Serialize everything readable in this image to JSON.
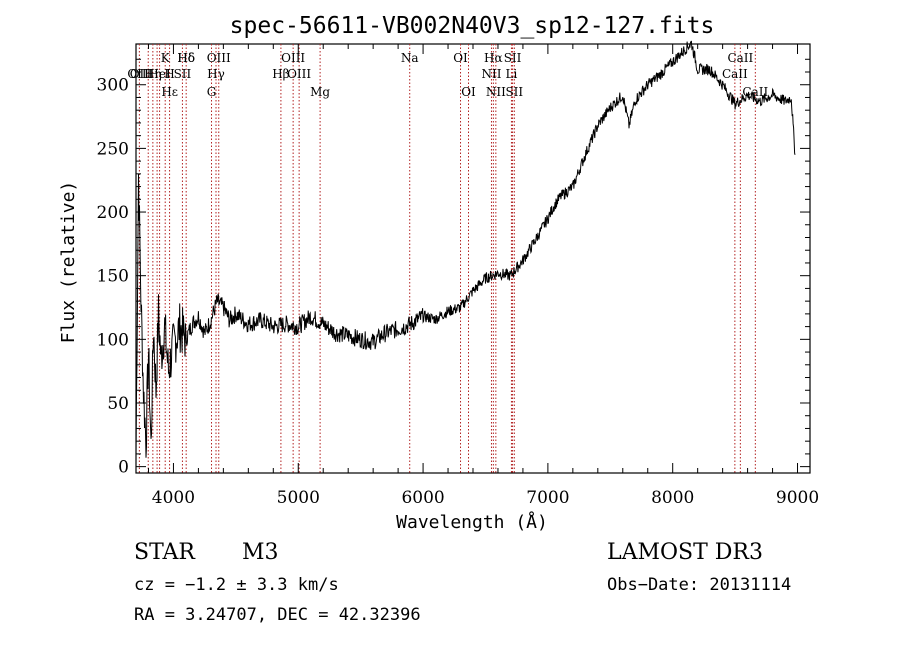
{
  "chart_data": {
    "type": "line",
    "title": "spec-56611-VB002N40V3_sp12-127.fits",
    "xlabel": "Wavelength (Å)",
    "ylabel": "Flux (relative)",
    "xlim": [
      3700,
      9100
    ],
    "ylim": [
      -5,
      332
    ],
    "xticks": [
      4000,
      5000,
      6000,
      7000,
      8000,
      9000
    ],
    "yticks": [
      0,
      50,
      100,
      150,
      200,
      250,
      300
    ],
    "grid": false,
    "series": [
      {
        "name": "flux",
        "x": [
          3700,
          3720,
          3740,
          3760,
          3780,
          3800,
          3820,
          3840,
          3860,
          3880,
          3900,
          3930,
          3960,
          4000,
          4050,
          4100,
          4150,
          4200,
          4250,
          4300,
          4350,
          4400,
          4450,
          4500,
          4600,
          4700,
          4800,
          4900,
          5000,
          5100,
          5200,
          5300,
          5400,
          5500,
          5600,
          5700,
          5800,
          5900,
          6000,
          6100,
          6200,
          6300,
          6400,
          6500,
          6600,
          6700,
          6800,
          6900,
          7000,
          7050,
          7100,
          7200,
          7300,
          7400,
          7500,
          7600,
          7650,
          7700,
          7800,
          7900,
          8000,
          8100,
          8150,
          8200,
          8300,
          8400,
          8500,
          8600,
          8700,
          8800,
          8900,
          8950,
          8980
        ],
        "y": [
          10,
          230,
          130,
          60,
          20,
          90,
          15,
          110,
          60,
          120,
          85,
          110,
          75,
          95,
          110,
          100,
          112,
          118,
          105,
          115,
          130,
          125,
          115,
          120,
          112,
          115,
          110,
          112,
          110,
          118,
          112,
          105,
          103,
          100,
          98,
          105,
          108,
          112,
          118,
          116,
          122,
          125,
          138,
          148,
          152,
          150,
          162,
          178,
          195,
          205,
          212,
          220,
          245,
          268,
          282,
          292,
          268,
          288,
          300,
          308,
          318,
          328,
          333,
          312,
          312,
          300,
          285,
          292,
          287,
          292,
          287,
          290,
          245
        ]
      }
    ],
    "line_labels": [
      {
        "label": "Hδ",
        "wave": 4102
      },
      {
        "label": "K",
        "wave": 3934
      },
      {
        "label": "Hδ",
        "wave": 4102
      },
      {
        "label": "OII",
        "wave": 3727
      },
      {
        "label": "HeI",
        "wave": 3889
      },
      {
        "label": "SII",
        "wave": 4072
      },
      {
        "label": "Hγ",
        "wave": 4341
      },
      {
        "label": "OIII",
        "wave": 4363
      },
      {
        "label": "OIII",
        "wave": 4959
      },
      {
        "label": "OIII",
        "wave": 5007
      },
      {
        "label": "Hβ",
        "wave": 4861
      },
      {
        "label": "Mg",
        "wave": 5175
      },
      {
        "label": "Na",
        "wave": 5893
      },
      {
        "label": "OI",
        "wave": 6300
      },
      {
        "label": "OI",
        "wave": 6364
      },
      {
        "label": "Hα",
        "wave": 6563
      },
      {
        "label": "SII",
        "wave": 6717
      },
      {
        "label": "NII",
        "wave": 6548
      },
      {
        "label": "Li",
        "wave": 6708
      },
      {
        "label": "NII",
        "wave": 6583
      },
      {
        "label": "SII",
        "wave": 6731
      },
      {
        "label": "CaII",
        "wave": 8542
      },
      {
        "label": "CaII",
        "wave": 8498
      },
      {
        "label": "CaII",
        "wave": 8662
      },
      {
        "label": "OIII",
        "wave": 3727
      },
      {
        "label": "Hη",
        "wave": 3835
      },
      {
        "label": "H",
        "wave": 3969
      },
      {
        "label": "G",
        "wave": 4305
      },
      {
        "label": "Hε",
        "wave": 3970
      }
    ],
    "line_marker_positions": [
      3727,
      3798,
      3835,
      3869,
      3889,
      3934,
      3969,
      4072,
      4102,
      4305,
      4341,
      4363,
      4861,
      4959,
      5007,
      5175,
      5893,
      6300,
      6364,
      6548,
      6563,
      6583,
      6708,
      6717,
      6731,
      8498,
      8542,
      8662
    ],
    "marker_color": "#b22222"
  },
  "info": {
    "class_label": "STAR",
    "subclass": "M3",
    "survey": "LAMOST DR3",
    "cz": "cz = −1.2 ± 3.3 km/s",
    "obs_date": "Obs−Date: 20131114",
    "coords": "RA =   3.24707, DEC =  42.32396"
  }
}
